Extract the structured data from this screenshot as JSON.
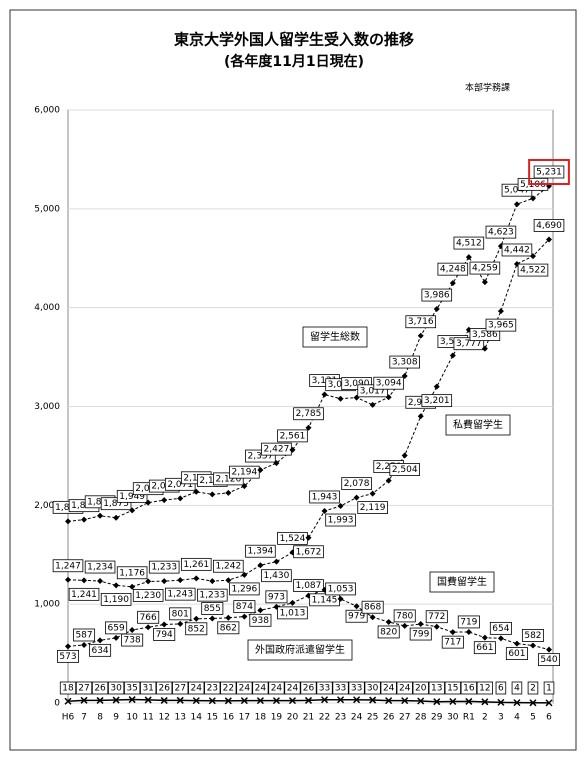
{
  "chart_data": {
    "type": "line",
    "title": "東京大学外国人留学生受入数の推移",
    "subtitle": "(各年度11月1日現在)",
    "note": "本部学務課",
    "categories": [
      "H6",
      "7",
      "8",
      "9",
      "10",
      "11",
      "12",
      "13",
      "14",
      "15",
      "16",
      "17",
      "18",
      "19",
      "20",
      "21",
      "22",
      "23",
      "24",
      "25",
      "26",
      "27",
      "28",
      "29",
      "30",
      "R1",
      "2",
      "3",
      "4",
      "5",
      "6"
    ],
    "ylim": [
      0,
      6000
    ],
    "yticks": [
      0,
      {
        "value": 1000,
        "label": "1,000"
      },
      {
        "value": 2000,
        "label": "2,000"
      },
      {
        "value": 3000,
        "label": "3,000"
      },
      {
        "value": 4000,
        "label": "4,000"
      },
      {
        "value": 5000,
        "label": "5,000"
      },
      {
        "value": 6000,
        "label": "6,000"
      }
    ],
    "grid": true,
    "series": [
      {
        "name": "留学生総数",
        "color": "#000000",
        "values": [
          1838,
          1855,
          1894,
          1875,
          1949,
          2027,
          2053,
          2071,
          2137,
          2111,
          2126,
          2194,
          2357,
          2427,
          2561,
          2785,
          3121,
          3079,
          3090,
          3017,
          3094,
          3308,
          3716,
          3986,
          4248,
          4512,
          4259,
          4623,
          5047,
          5106,
          5231
        ],
        "value_labels": [
          "1,838",
          "1,855",
          "1,894",
          "1,875",
          "1,949",
          "2,027",
          "2,053",
          "2,071",
          "2,137",
          "2,111",
          "2,126",
          "2,194",
          "2,357",
          "2,427",
          "2,561",
          "2,785",
          "3,121",
          "3,079",
          "3,090",
          "3,017",
          "3,094",
          "3,308",
          "3,716",
          "3,986",
          "4,248",
          "4,512",
          "4,259",
          "4,623",
          "5,047",
          "5,106",
          "5,231"
        ]
      },
      {
        "name": "私費留学生",
        "color": "#000000",
        "values": [
          1247,
          1241,
          1234,
          1190,
          1176,
          1230,
          1233,
          1243,
          1261,
          1233,
          1242,
          1296,
          1394,
          1430,
          1524,
          1672,
          1943,
          1993,
          2078,
          2119,
          2250,
          2504,
          2901,
          3201,
          3516,
          3777,
          3586,
          3965,
          4442,
          4522,
          4690
        ],
        "value_labels": [
          "1,247",
          "1,241",
          "1,234",
          "1,190",
          "1,176",
          "1,230",
          "1,233",
          "1,243",
          "1,261",
          "1,233",
          "1,242",
          "1,296",
          "1,394",
          "1,430",
          "1,524",
          "1,672",
          "1,943",
          "1,993",
          "2,078",
          "2,119",
          "2,250",
          "2,504",
          "2,901",
          "3,201",
          "3,516",
          "3,777",
          "3,586",
          "3,965",
          "4,442",
          "4,522",
          "4,690"
        ]
      },
      {
        "name": "国費留学生",
        "color": "#000000",
        "values": [
          573,
          587,
          634,
          659,
          738,
          766,
          794,
          801,
          852,
          855,
          862,
          874,
          938,
          973,
          1013,
          1087,
          1145,
          1053,
          979,
          868,
          820,
          780,
          799,
          772,
          717,
          719,
          661,
          654,
          601,
          582,
          540
        ],
        "value_labels": [
          "573",
          "587",
          "634",
          "659",
          "738",
          "766",
          "794",
          "801",
          "852",
          "855",
          "862",
          "874",
          "938",
          "973",
          "1,013",
          "1,087",
          "1,145",
          "1,053",
          "979",
          "868",
          "820",
          "780",
          "799",
          "772",
          "717",
          "719",
          "661",
          "654",
          "601",
          "582",
          "540"
        ]
      },
      {
        "name": "外国政府派遣留学生",
        "color": "#000000",
        "values": [
          18,
          27,
          26,
          30,
          35,
          31,
          26,
          27,
          24,
          23,
          22,
          24,
          24,
          24,
          24,
          26,
          33,
          33,
          33,
          30,
          24,
          24,
          20,
          13,
          15,
          16,
          12,
          6,
          4,
          2,
          1
        ]
      }
    ]
  }
}
